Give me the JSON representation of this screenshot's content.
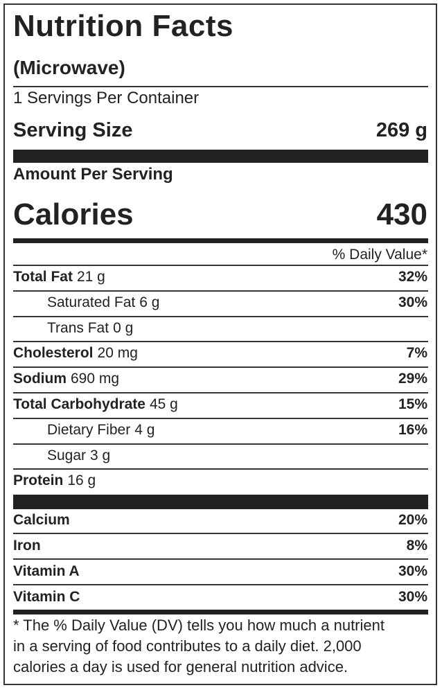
{
  "header": {
    "title": "Nutrition Facts",
    "subtitle": "(Microwave)",
    "servings": "1 Servings Per Container",
    "serving_size_label": "Serving Size",
    "serving_size": "269 g"
  },
  "calories": {
    "heading": "Amount Per Serving",
    "label": "Calories",
    "value": "430"
  },
  "daily_value_heading": "% Daily Value*",
  "nutrients": [
    {
      "name": "Total Fat",
      "amount": "21 g",
      "dv": "32%"
    },
    {
      "name": "Saturated Fat",
      "amount": "6 g",
      "dv": "30%"
    },
    {
      "name": "Trans Fat",
      "amount": "0 g"
    },
    {
      "name": "Cholesterol",
      "amount": "20 mg",
      "dv": "7%"
    },
    {
      "name": "Sodium",
      "amount": "690 mg",
      "dv": "29%"
    },
    {
      "name": "Total Carbohydrate",
      "amount": "45 g",
      "dv": "15%"
    },
    {
      "name": "Dietary Fiber",
      "amount": "4 g",
      "dv": "16%"
    },
    {
      "name": "Sugar",
      "amount": "3 g"
    },
    {
      "name": "Protein",
      "amount": "16 g"
    }
  ],
  "vitamins": [
    {
      "name": "Calcium",
      "dv": "20%"
    },
    {
      "name": "Iron",
      "dv": "8%"
    },
    {
      "name": "Vitamin A",
      "dv": "30%"
    },
    {
      "name": "Vitamin C",
      "dv": "30%"
    }
  ],
  "footnote": [
    "* The % Daily Value (DV) tells you how much a nutrient",
    "in a serving of food contributes to a daily diet. 2,000",
    "calories a day is used for general nutrition advice."
  ]
}
